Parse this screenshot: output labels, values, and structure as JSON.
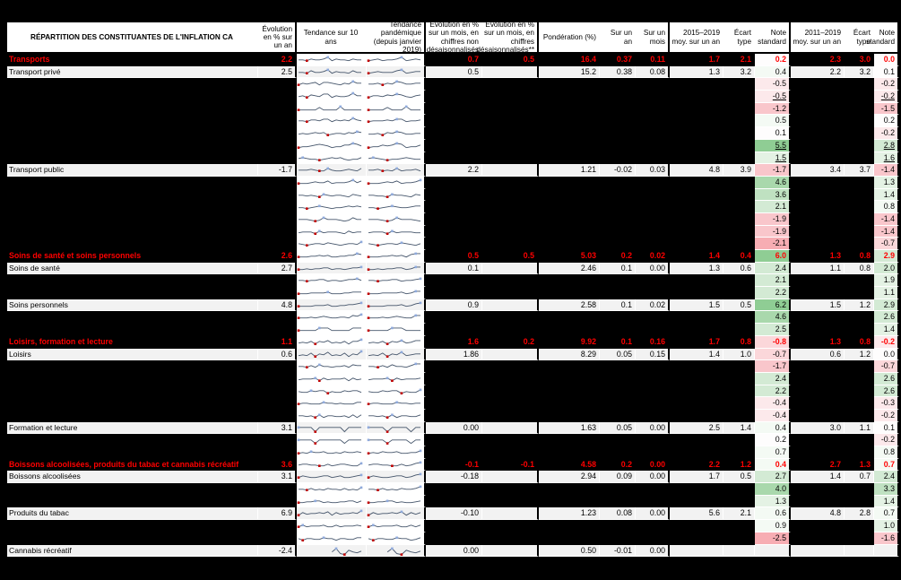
{
  "app": {
    "name": "spreadsheet-inflation-table",
    "language": "fr"
  },
  "columns": [
    {
      "id": "label",
      "label": "RÉPARTITION DES CONSTITUANTES DE L'INFLATION CA"
    },
    {
      "id": "evo",
      "label": "Évolution en % sur un an"
    },
    {
      "id": "s10",
      "label": "Tendance sur 10 ans"
    },
    {
      "id": "sp",
      "label": "Tendance pandémique (depuis janvier 2019)"
    },
    {
      "id": "mn",
      "label": "Évolution en % sur un mois, en chiffres non désaisonnalisés"
    },
    {
      "id": "ms",
      "label": "Évolution en % sur un mois, en chiffres désaisonnalisés**"
    },
    {
      "id": "po",
      "label": "Pondération (%)"
    },
    {
      "id": "y1",
      "label": "Sur un an"
    },
    {
      "id": "m1",
      "label": "Sur un mois"
    },
    {
      "id": "a15",
      "label": "2015–2019 moy. sur un an"
    },
    {
      "id": "s15",
      "label": "Écart type"
    },
    {
      "id": "n15",
      "label": "Note standard"
    },
    {
      "id": "a11",
      "label": "2011–2019 moy. sur un an"
    },
    {
      "id": "s11",
      "label": "Écart type"
    },
    {
      "id": "n11",
      "label": "Note standard"
    }
  ],
  "colors": {
    "category_text": "#FF0000",
    "row_bg": "#F2F2F2",
    "black_band": "#000000",
    "spark_line": "#44546A",
    "spark_min_marker": "#C00000",
    "spark_max_marker": "#8FAADC",
    "ns_scale_negative_strong": "#F7ADB3",
    "ns_scale_negative": "#F9C6CB",
    "ns_scale_positive": "#D3EAD4",
    "ns_scale_positive_strong": "#8FCD94"
  },
  "rows": [
    {
      "label": "Transports",
      "type": "category",
      "v": {
        "evo": "2.2",
        "mn": "0.7",
        "ms": "0.5",
        "po": "16.4",
        "y1": "0.37",
        "m1": "0.11",
        "a15": "1.7",
        "s15": "2.1",
        "n15": "0.2",
        "a11": "2.3",
        "s11": "3.0",
        "n11": "0.0"
      },
      "s10": "5546556846554655",
      "sp": "456455684565"
    },
    {
      "label": "Transport privé",
      "type": "item",
      "v": {
        "evo": "2.5",
        "mn": "0.5",
        "po": "15.2",
        "y1": "0.38",
        "m1": "0.08",
        "a15": "1.3",
        "s15": "3.2",
        "n15": "0.4",
        "a11": "2.2",
        "s11": "3.2",
        "n11": "0.1"
      },
      "s10": "5547556846554755",
      "sp": "456555784566"
    },
    {
      "label": "",
      "type": "hidden",
      "v": {
        "n15": "-0.5",
        "n11": "-0.2"
      },
      "s10": "4656747765465866",
      "sp": "556465875566"
    },
    {
      "label": "",
      "type": "hidden",
      "u": true,
      "v": {
        "n15": "-0.5",
        "n11": "-0.2"
      },
      "s10": "5647658846556966",
      "sp": "466576875467"
    },
    {
      "label": "",
      "type": "hidden",
      "v": {
        "n15": "-1.2",
        "n11": "-1.5"
      },
      "s10": "4444474444844444",
      "sp": "444474448444"
    },
    {
      "label": "",
      "type": "hidden",
      "v": {
        "n15": "0.5",
        "n11": "0.2"
      },
      "s10": "5546657746565865",
      "sp": "455565774556"
    },
    {
      "label": "",
      "type": "hidden",
      "v": {
        "n15": "0.1",
        "n11": "-0.2"
      },
      "s10": "4545656345546576",
      "sp": "445365764455"
    },
    {
      "label": "",
      "type": "hidden",
      "u": true,
      "v": {
        "n15": "5.5",
        "n11": "2.8"
      },
      "s10": "3445676534466875",
      "sp": "344656873446"
    },
    {
      "label": "",
      "type": "hidden",
      "u": true,
      "v": {
        "n15": "1.5",
        "n11": "1.6"
      },
      "s10": "5654434565643446",
      "sp": "565434456544"
    },
    {
      "label": "Transport public",
      "type": "item",
      "v": {
        "evo": "-1.7",
        "mn": "2.2",
        "po": "1.21",
        "y1": "-0.02",
        "m1": "0.03",
        "a15": "4.8",
        "s15": "3.9",
        "n15": "-1.7",
        "a11": "3.4",
        "s11": "3.7",
        "n11": "-1.4"
      },
      "s10": "5556544754456547",
      "sp": "556454745564"
    },
    {
      "label": "",
      "type": "hidden",
      "v": {
        "n15": "4.6",
        "n11": "1.3"
      },
      "s10": "4445655745556857",
      "sp": "444565745568"
    },
    {
      "label": "",
      "type": "hidden",
      "v": {
        "n15": "3.6",
        "n11": "1.4"
      },
      "s10": "5545436545543654",
      "sp": "554436554365"
    },
    {
      "label": "",
      "type": "hidden",
      "v": {
        "n15": "2.1",
        "n11": "0.8"
      },
      "s10": "4434565434456565",
      "sp": "443456544566"
    },
    {
      "label": "",
      "type": "hidden",
      "v": {
        "n15": "-1.9",
        "n11": "-1.4"
      },
      "s10": "5554347555434755",
      "sp": "555434755543"
    },
    {
      "label": "",
      "type": "hidden",
      "v": {
        "n15": "-1.9",
        "n11": "-1.4"
      },
      "s10": "4555364555436455",
      "sp": "455536455544"
    },
    {
      "label": "",
      "type": "hidden",
      "v": {
        "n15": "-2.1",
        "n11": "-0.7"
      },
      "s10": "5434554654345547",
      "sp": "543455465435"
    },
    {
      "label": "Soins de santé et soins personnels",
      "type": "category",
      "v": {
        "evo": "2.6",
        "mn": "0.5",
        "ms": "0.5",
        "po": "5.03",
        "y1": "0.2",
        "m1": "0.02",
        "a15": "1.4",
        "s15": "0.4",
        "n15": "6.0",
        "a11": "1.3",
        "s11": "0.8",
        "n11": "2.9"
      },
      "s10": "4445565644556687",
      "sp": "444556564788"
    },
    {
      "label": "Soins de santé",
      "type": "item",
      "v": {
        "evo": "2.7",
        "mn": "0.1",
        "po": "2.46",
        "y1": "0.1",
        "m1": "0.00",
        "a15": "1.3",
        "s15": "0.6",
        "n15": "2.4",
        "a11": "1.1",
        "s11": "0.8",
        "n11": "2.0"
      },
      "s10": "4454556645545667",
      "sp": "445455664577"
    },
    {
      "label": "",
      "type": "hidden",
      "v": {
        "n15": "2.1",
        "n11": "1.9"
      },
      "s10": "5545566455456675",
      "sp": "554556645567"
    },
    {
      "label": "",
      "type": "hidden",
      "v": {
        "n15": "2.2",
        "n11": "1.1"
      },
      "s10": "4445555644455666",
      "sp": "444555564577"
    },
    {
      "label": "Soins personnels",
      "type": "item",
      "v": {
        "evo": "4.8",
        "mn": "0.9",
        "po": "2.58",
        "y1": "0.1",
        "m1": "0.02",
        "a15": "1.5",
        "s15": "0.5",
        "n15": "6.2",
        "a11": "1.5",
        "s11": "1.2",
        "n11": "2.9"
      },
      "s10": "4444555644556678",
      "sp": "444455564578"
    },
    {
      "label": "",
      "type": "hidden",
      "v": {
        "n15": "4.6",
        "n11": "2.6"
      },
      "s10": "4445456544554768",
      "sp": "444545654477"
    },
    {
      "label": "",
      "type": "hidden",
      "v": {
        "n15": "2.5",
        "n11": "1.4"
      },
      "s10": "4444477744444777",
      "sp": "444447774444"
    },
    {
      "label": "Loisirs, formation et lecture",
      "type": "category",
      "v": {
        "evo": "1.1",
        "mn": "1.6",
        "ms": "0.2",
        "po": "9.92",
        "y1": "0.1",
        "m1": "0.16",
        "a15": "1.7",
        "s15": "0.8",
        "n15": "-0.8",
        "a11": "1.3",
        "s11": "0.8",
        "n11": "-0.2"
      },
      "s10": "4546365745463668",
      "sp": "454636574577"
    },
    {
      "label": "Loisirs",
      "type": "item",
      "v": {
        "evo": "0.6",
        "mn": "1.86",
        "po": "8.29",
        "y1": "0.05",
        "m1": "0.15",
        "a15": "1.4",
        "s15": "1.0",
        "n15": "-0.7",
        "a11": "0.6",
        "s11": "1.2",
        "n11": "0.0"
      },
      "s10": "4547365845473659",
      "sp": "454736584566"
    },
    {
      "label": "",
      "type": "hidden",
      "v": {
        "n15": "-1.7",
        "n11": "-0.7"
      },
      "s10": "5546475545564766",
      "sp": "554647554688"
    },
    {
      "label": "",
      "type": "hidden",
      "v": {
        "n15": "2.4",
        "n11": "2.6"
      },
      "s10": "4555636455563645",
      "sp": "455563645556"
    },
    {
      "label": "",
      "type": "hidden",
      "v": {
        "n15": "2.2",
        "n11": "2.6"
      },
      "s10": "5446566354465664",
      "sp": "544656635447"
    },
    {
      "label": "",
      "type": "hidden",
      "v": {
        "n15": "-0.4",
        "n11": "-0.3"
      },
      "s10": "4554446554544466",
      "sp": "455444655455"
    },
    {
      "label": "",
      "type": "hidden",
      "v": {
        "n15": "-0.4",
        "n11": "-0.2"
      },
      "s10": "5545363554453636",
      "sp": "554536355446"
    },
    {
      "label": "Formation et lecture",
      "type": "item",
      "v": {
        "evo": "3.1",
        "mn": "0.00",
        "po": "1.63",
        "y1": "0.05",
        "m1": "0.00",
        "a15": "2.5",
        "s15": "1.4",
        "n15": "0.4",
        "a11": "3.0",
        "s11": "1.1",
        "n11": "0.1"
      },
      "s10": "6666166666616666",
      "sp": "666616666166"
    },
    {
      "label": "",
      "type": "hidden",
      "v": {
        "n15": "0.2",
        "n11": "-0.2"
      },
      "s10": "5555155555515555",
      "sp": "555515555155"
    },
    {
      "label": "",
      "type": "hidden",
      "v": {
        "n15": "0.7",
        "n11": "0.8"
      },
      "s10": "4546556445465565",
      "sp": "454655644557"
    },
    {
      "label": "Boissons alcoolisées, produits du tabac et cannabis récréatif",
      "type": "category",
      "v": {
        "evo": "3.6",
        "mn": "-0.1",
        "ms": "-0.1",
        "po": "4.58",
        "y1": "0.2",
        "m1": "0.00",
        "a15": "2.2",
        "s15": "1.2",
        "n15": "0.4",
        "a11": "2.7",
        "s11": "1.3",
        "n11": "0.7"
      },
      "s10": "5665544645665447",
      "sp": "566554464578"
    },
    {
      "label": "Boissons alcoolisées",
      "type": "item",
      "v": {
        "evo": "3.1",
        "mn": "-0.18",
        "po": "2.94",
        "y1": "0.09",
        "m1": "0.00",
        "a15": "1.7",
        "s15": "0.5",
        "n15": "2.7",
        "a11": "1.4",
        "s11": "0.7",
        "n11": "2.4"
      },
      "s10": "4654456645644567",
      "sp": "465445664578"
    },
    {
      "label": "",
      "type": "hidden",
      "v": {
        "n15": "4.0",
        "n11": "3.3"
      },
      "s10": "5546454655464547",
      "sp": "554645465568"
    },
    {
      "label": "",
      "type": "hidden",
      "v": {
        "n15": "1.3",
        "n11": "1.4"
      },
      "s10": "4455664544556646",
      "sp": "445566454456"
    },
    {
      "label": "Produits du tabac",
      "type": "item",
      "v": {
        "evo": "6.9",
        "mn": "-0.10",
        "po": "1.23",
        "y1": "0.08",
        "m1": "0.00",
        "a15": "5.6",
        "s15": "2.1",
        "n15": "0.6",
        "a11": "4.8",
        "s11": "2.8",
        "n11": "0.7"
      },
      "s10": "3645565736455658",
      "sp": "364556573646"
    },
    {
      "label": "",
      "type": "hidden",
      "v": {
        "n15": "0.9",
        "n11": "1.0"
      },
      "s10": "4645556446455565",
      "sp": "464555644646"
    },
    {
      "label": "",
      "type": "hidden",
      "v": {
        "n15": "-2.5",
        "n11": "-1.6"
      },
      "s10": "5355446553554466",
      "sp": "535544655346"
    },
    {
      "label": "Cannabis récréatif",
      "type": "item",
      "v": {
        "evo": "-2.4",
        "mn": "0.00",
        "po": "0.50",
        "y1": "-0.01",
        "m1": "0.00"
      },
      "s10": "xxxxxxxx48216435",
      "sp": "xxxx48216435"
    }
  ]
}
